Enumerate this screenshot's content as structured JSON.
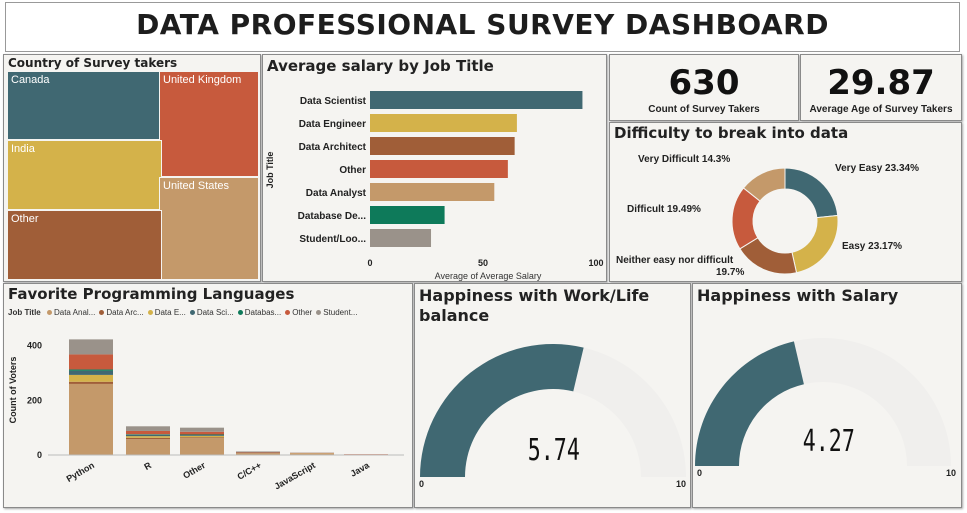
{
  "dashboard": {
    "title": "DATA PROFESSIONAL SURVEY DASHBOARD"
  },
  "country": {
    "title": "Country of Survey takers",
    "cells": [
      {
        "label": "Canada",
        "color": "#406872"
      },
      {
        "label": "United Kingdom",
        "color": "#c75a3d"
      },
      {
        "label": "India",
        "color": "#d4b24a"
      },
      {
        "label": "United States",
        "color": "#c4996a"
      },
      {
        "label": "Other",
        "color": "#a05e38"
      }
    ]
  },
  "salary": {
    "title": "Average salary by Job Title",
    "ylabel": "Job Title",
    "xlabel": "Average of Average Salary",
    "ticks": [
      "0",
      "50",
      "100"
    ]
  },
  "kpi": {
    "count_value": "630",
    "count_label": "Count of Survey Takers",
    "age_value": "29.87",
    "age_label": "Average Age of Survey Takers"
  },
  "difficulty": {
    "title": "Difficulty to break into data",
    "slices": [
      {
        "label": "Very Easy 23.34%",
        "value": 23.34,
        "color": "#406872"
      },
      {
        "label": "Easy 23.17%",
        "value": 23.17,
        "color": "#d4b24a"
      },
      {
        "label": "Neither easy nor difficult",
        "label2": "19.7%",
        "value": 19.7,
        "color": "#a05e38"
      },
      {
        "label": "Difficult 19.49%",
        "value": 19.49,
        "color": "#c75a3d"
      },
      {
        "label": "Very Difficult 14.3%",
        "value": 14.3,
        "color": "#c4996a"
      }
    ]
  },
  "languages": {
    "title": "Favorite Programming Languages",
    "legend_title": "Job Title",
    "legend": [
      {
        "label": "Data Anal...",
        "color": "#c4996a"
      },
      {
        "label": "Data Arc...",
        "color": "#a05e38"
      },
      {
        "label": "Data E...",
        "color": "#d4b24a"
      },
      {
        "label": "Data Sci...",
        "color": "#406872"
      },
      {
        "label": "Databas...",
        "color": "#0e7a5a"
      },
      {
        "label": "Other",
        "color": "#c75a3d"
      },
      {
        "label": "Student...",
        "color": "#9a928a"
      }
    ],
    "ylabel": "Count of Voters",
    "yticks": [
      "400",
      "200",
      "0"
    ]
  },
  "work_life": {
    "title_line1": "Happiness with Work/Life",
    "title_line2": "balance",
    "value": "5.74",
    "min": "0",
    "max": "10"
  },
  "salary_happy": {
    "title": "Happiness with Salary",
    "value": "4.27",
    "min": "0",
    "max": "10"
  },
  "chart_data": [
    {
      "type": "bar",
      "title": "Average salary by Job Title",
      "categories": [
        "Data Scientist",
        "Data Engineer",
        "Data Architect",
        "Other",
        "Data Analyst",
        "Database De...",
        "Student/Loo..."
      ],
      "values": [
        94,
        65,
        64,
        61,
        55,
        33,
        27
      ],
      "colors": [
        "#406872",
        "#d4b24a",
        "#a05e38",
        "#c75a3d",
        "#c4996a",
        "#0e7a5a",
        "#9a928a"
      ],
      "xlim": [
        0,
        100
      ],
      "xlabel": "Average of Average Salary",
      "ylabel": "Job Title"
    },
    {
      "type": "bar",
      "title": "Favorite Programming Languages",
      "stacked": true,
      "categories": [
        "Python",
        "R",
        "Other",
        "C/C++",
        "JavaScript",
        "Java"
      ],
      "series": [
        {
          "name": "Data Anal...",
          "color": "#c4996a",
          "values": [
            260,
            58,
            62,
            6,
            5,
            2
          ]
        },
        {
          "name": "Data Arc...",
          "color": "#a05e38",
          "values": [
            8,
            5,
            3,
            1,
            1,
            0
          ]
        },
        {
          "name": "Data E...",
          "color": "#d4b24a",
          "values": [
            25,
            6,
            5,
            1,
            1,
            0
          ]
        },
        {
          "name": "Data Sci...",
          "color": "#406872",
          "values": [
            15,
            5,
            3,
            1,
            0,
            0
          ]
        },
        {
          "name": "Databas...",
          "color": "#0e7a5a",
          "values": [
            5,
            2,
            2,
            0,
            0,
            0
          ]
        },
        {
          "name": "Other",
          "color": "#c75a3d",
          "values": [
            55,
            12,
            10,
            2,
            1,
            1
          ]
        },
        {
          "name": "Student...",
          "color": "#9a928a",
          "values": [
            55,
            17,
            15,
            2,
            1,
            0
          ]
        }
      ],
      "ylim": [
        0,
        450
      ],
      "ylabel": "Count of Voters"
    },
    {
      "type": "pie",
      "title": "Difficulty to break into data",
      "categories": [
        "Very Easy",
        "Easy",
        "Neither easy nor difficult",
        "Difficult",
        "Very Difficult"
      ],
      "values": [
        23.34,
        23.17,
        19.7,
        19.49,
        14.3
      ]
    },
    {
      "type": "gauge",
      "title": "Happiness with Work/Life balance",
      "value": 5.74,
      "min": 0,
      "max": 10,
      "color": "#406872"
    },
    {
      "type": "gauge",
      "title": "Happiness with Salary",
      "value": 4.27,
      "min": 0,
      "max": 10,
      "color": "#406872"
    }
  ]
}
